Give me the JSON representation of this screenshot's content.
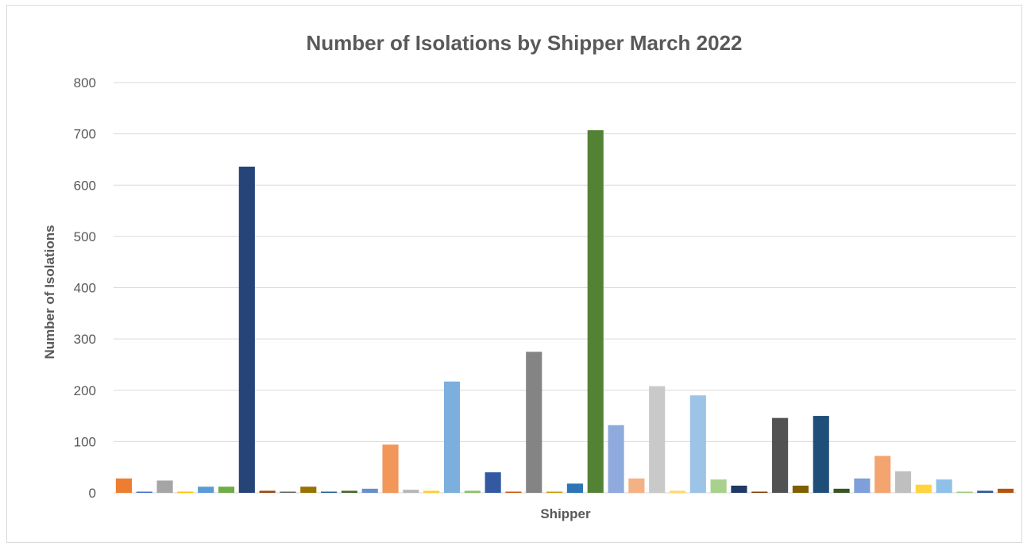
{
  "chart_data": {
    "type": "bar",
    "title": "Number of Isolations by Shipper March 2022",
    "xlabel": "Shipper",
    "ylabel": "Number of Isolations",
    "ylim": [
      0,
      800
    ],
    "yticks": [
      0,
      100,
      200,
      300,
      400,
      500,
      600,
      700,
      800
    ],
    "grid": true,
    "legend": "none",
    "values": [
      28,
      2,
      24,
      2,
      12,
      12,
      636,
      4,
      2,
      12,
      2,
      4,
      8,
      94,
      6,
      4,
      217,
      4,
      40,
      2,
      275,
      2,
      18,
      707,
      132,
      28,
      208,
      4,
      190,
      26,
      14,
      2,
      146,
      14,
      150,
      8,
      28,
      72,
      42,
      16,
      26,
      2,
      4,
      8
    ],
    "colors": [
      "#ED7D31",
      "#4472C4",
      "#A5A5A5",
      "#FFC000",
      "#5B9BD5",
      "#70AD47",
      "#264478",
      "#9E480E",
      "#636363",
      "#997300",
      "#255E91",
      "#43682B",
      "#698ED0",
      "#F1975A",
      "#B7B7B7",
      "#FFCD33",
      "#7CAFDD",
      "#8CC168",
      "#335AA1",
      "#C55A11",
      "#848484",
      "#CC9A00",
      "#2E75B6",
      "#548235",
      "#8FAADC",
      "#F4B183",
      "#C9C9C9",
      "#FFD966",
      "#9DC3E6",
      "#A9D18E",
      "#203864",
      "#843C0C",
      "#525252",
      "#7F6000",
      "#1F4E79",
      "#375623",
      "#7F9FDA",
      "#F4A46E",
      "#BFBFBF",
      "#FFD43F",
      "#8EC0EA",
      "#9CCB7B",
      "#2F5597",
      "#B35510"
    ]
  }
}
